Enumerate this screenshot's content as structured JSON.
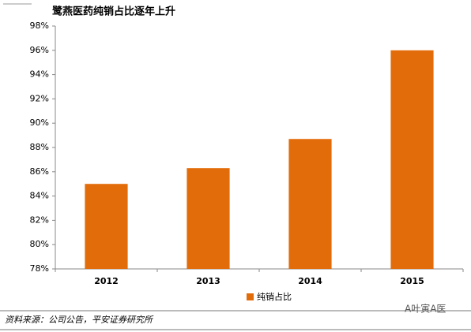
{
  "chart_data": {
    "type": "bar",
    "title": "鹭燕医药纯销占比逐年上升",
    "categories": [
      "2012",
      "2013",
      "2014",
      "2015"
    ],
    "series": [
      {
        "name": "纯销占比",
        "color": "#e36c0a",
        "values": [
          85,
          86.3,
          88.7,
          96
        ]
      }
    ],
    "ylim": [
      78,
      98
    ],
    "yticks": [
      {
        "value": 78,
        "label": "78%"
      },
      {
        "value": 80,
        "label": "80%"
      },
      {
        "value": 82,
        "label": "82%"
      },
      {
        "value": 84,
        "label": "84%"
      },
      {
        "value": 86,
        "label": "86%"
      },
      {
        "value": 88,
        "label": "88%"
      },
      {
        "value": 90,
        "label": "90%"
      },
      {
        "value": 92,
        "label": "92%"
      },
      {
        "value": 94,
        "label": "94%"
      },
      {
        "value": 96,
        "label": "96%"
      },
      {
        "value": 98,
        "label": "98%"
      }
    ],
    "grid": false,
    "legend": "bottom",
    "source": "资料来源：公司公告，平安证券研究所",
    "watermark": "A叶寅A医"
  }
}
